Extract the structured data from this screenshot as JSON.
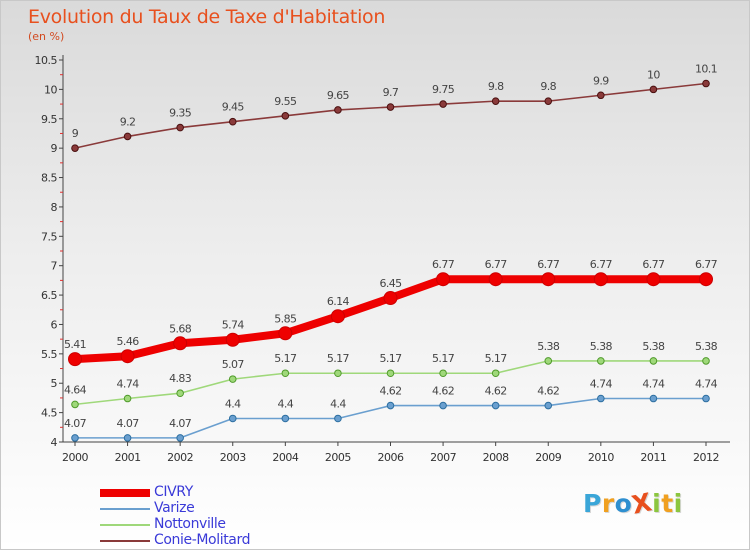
{
  "header": {
    "title": "Evolution du Taux de Taxe d'Habitation",
    "subtitle": "(en %)"
  },
  "logo": {
    "text": "ProXiti",
    "letters": [
      {
        "ch": "P",
        "color": "#3aa6d8"
      },
      {
        "ch": "r",
        "color": "#f0a020"
      },
      {
        "ch": "o",
        "color": "#2e8fd0"
      },
      {
        "ch": "X",
        "color": "#e8501e"
      },
      {
        "ch": "i",
        "color": "#8cc63f"
      },
      {
        "ch": "t",
        "color": "#f0a020"
      },
      {
        "ch": "i",
        "color": "#8cc63f"
      }
    ]
  },
  "chart_data": {
    "type": "line",
    "x": [
      "2000",
      "2001",
      "2002",
      "2003",
      "2004",
      "2005",
      "2006",
      "2007",
      "2008",
      "2009",
      "2010",
      "2011",
      "2012"
    ],
    "ylim": [
      4,
      10.5
    ],
    "yticks": [
      "4",
      "4.5",
      "5",
      "5.5",
      "6",
      "6.5",
      "7",
      "7.5",
      "8",
      "8.5",
      "9",
      "9.5",
      "10",
      "10.5"
    ],
    "grid": false,
    "legend_position": "bottom-left",
    "series": [
      {
        "name": "CIVRY",
        "color": "#ee0000",
        "values": [
          5.41,
          5.46,
          5.68,
          5.74,
          5.85,
          6.14,
          6.45,
          6.77,
          6.77,
          6.77,
          6.77,
          6.77,
          6.77
        ],
        "labels": [
          "5.41",
          "5.46",
          "5.68",
          "5.74",
          "5.85",
          "6.14",
          "6.45",
          "6.77",
          "6.77",
          "6.77",
          "6.77",
          "6.77",
          "6.77"
        ]
      },
      {
        "name": "Varize",
        "color": "#6a9fcf",
        "values": [
          4.07,
          4.07,
          4.07,
          4.4,
          4.4,
          4.4,
          4.62,
          4.62,
          4.62,
          4.62,
          4.74,
          4.74,
          4.74
        ],
        "labels": [
          "4.07",
          "4.07",
          "4.07",
          "4.4",
          "4.4",
          "4.4",
          "4.62",
          "4.62",
          "4.62",
          "4.62",
          "4.74",
          "4.74",
          "4.74"
        ]
      },
      {
        "name": "Nottonville",
        "color": "#9fd87a",
        "values": [
          4.64,
          4.74,
          4.83,
          5.07,
          5.17,
          5.17,
          5.17,
          5.17,
          5.17,
          5.38,
          5.38,
          5.38,
          5.38
        ],
        "labels": [
          "4.64",
          "4.74",
          "4.83",
          "5.07",
          "5.17",
          "5.17",
          "5.17",
          "5.17",
          "5.17",
          "5.38",
          "5.38",
          "5.38",
          "5.38"
        ]
      },
      {
        "name": "Conie-Molitard",
        "color": "#8a3a3a",
        "values": [
          9,
          9.2,
          9.35,
          9.45,
          9.55,
          9.65,
          9.7,
          9.75,
          9.8,
          9.8,
          9.9,
          10,
          10.1
        ],
        "labels": [
          "9",
          "9.2",
          "9.35",
          "9.45",
          "9.55",
          "9.65",
          "9.7",
          "9.75",
          "9.8",
          "9.8",
          "9.9",
          "10",
          "10.1"
        ]
      }
    ]
  }
}
